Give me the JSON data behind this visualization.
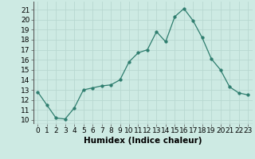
{
  "x": [
    0,
    1,
    2,
    3,
    4,
    5,
    6,
    7,
    8,
    9,
    10,
    11,
    12,
    13,
    14,
    15,
    16,
    17,
    18,
    19,
    20,
    21,
    22,
    23
  ],
  "y": [
    12.8,
    11.5,
    10.2,
    10.1,
    11.2,
    13.0,
    13.2,
    13.4,
    13.5,
    14.0,
    15.8,
    16.7,
    17.0,
    18.8,
    17.8,
    20.3,
    21.1,
    19.9,
    18.2,
    16.1,
    15.0,
    13.3,
    12.7,
    12.5
  ],
  "line_color": "#2e7d6e",
  "marker": "o",
  "marker_size": 2.5,
  "bg_color": "#cdeae3",
  "grid_color": "#b8d8d0",
  "xlabel": "Humidex (Indice chaleur)",
  "ylabel_ticks": [
    10,
    11,
    12,
    13,
    14,
    15,
    16,
    17,
    18,
    19,
    20,
    21
  ],
  "ylim": [
    9.6,
    21.8
  ],
  "xlim": [
    -0.5,
    23.5
  ],
  "xtick_labels": [
    "0",
    "1",
    "2",
    "3",
    "4",
    "5",
    "6",
    "7",
    "8",
    "9",
    "10",
    "11",
    "12",
    "13",
    "14",
    "15",
    "16",
    "17",
    "18",
    "19",
    "20",
    "21",
    "22",
    "23"
  ],
  "xlabel_fontsize": 7.5,
  "tick_fontsize": 6.5
}
